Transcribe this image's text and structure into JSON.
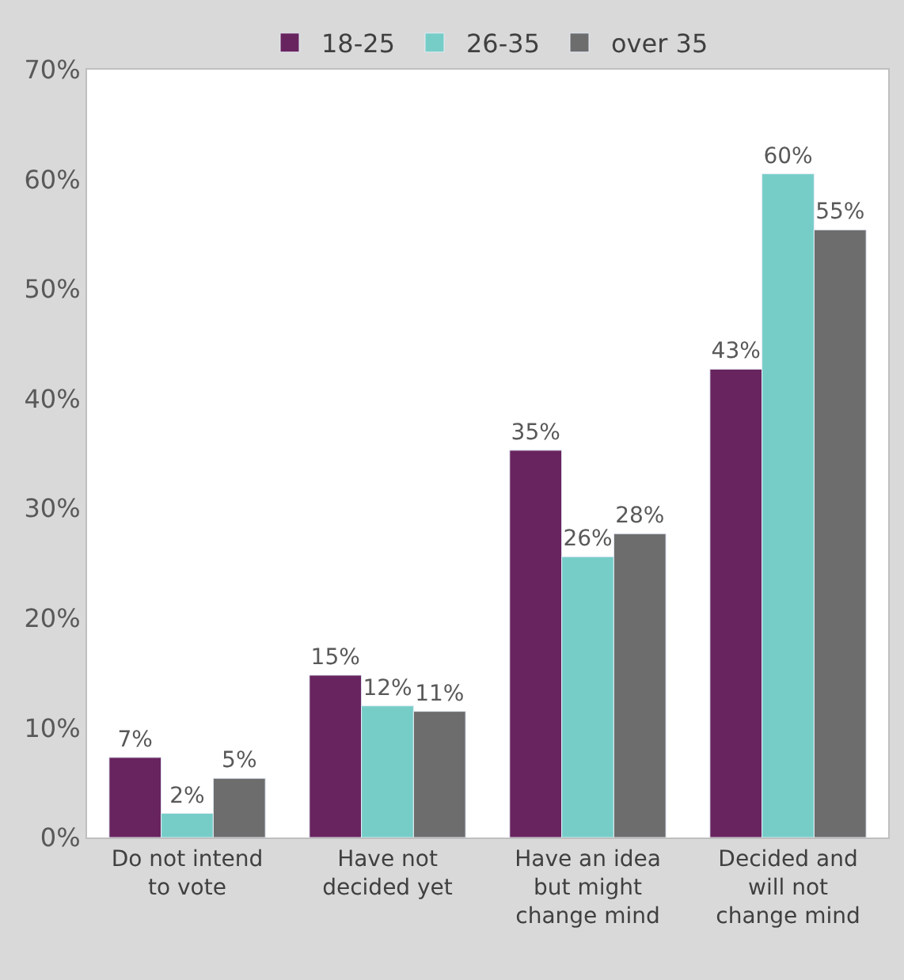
{
  "chart_data": {
    "type": "bar",
    "categories": [
      "Do not intend\nto vote",
      "Have not\ndecided yet",
      "Have an idea\nbut might\nchange mind",
      "Decided and\nwill not\nchange mind"
    ],
    "series": [
      {
        "name": "18-25",
        "color": "#68245e",
        "values": [
          7.3,
          14.8,
          35.3,
          42.7
        ],
        "value_labels": [
          "7%",
          "15%",
          "35%",
          "43%"
        ]
      },
      {
        "name": "26-35",
        "color": "#76cdc7",
        "values": [
          2.2,
          12.0,
          25.6,
          60.5
        ],
        "value_labels": [
          "2%",
          "12%",
          "26%",
          "60%"
        ]
      },
      {
        "name": "over 35",
        "color": "#6d6d6d",
        "values": [
          5.4,
          11.5,
          27.7,
          55.4
        ],
        "value_labels": [
          "5%",
          "11%",
          "28%",
          "55%"
        ]
      }
    ],
    "ylim": [
      0,
      70
    ],
    "yticks": [
      {
        "value": 0,
        "label": "0%"
      },
      {
        "value": 10,
        "label": "10%"
      },
      {
        "value": 20,
        "label": "20%"
      },
      {
        "value": 30,
        "label": "30%"
      },
      {
        "value": 40,
        "label": "40%"
      },
      {
        "value": 50,
        "label": "50%"
      },
      {
        "value": 60,
        "label": "60%"
      },
      {
        "value": 70,
        "label": "70%"
      }
    ],
    "legend": "top"
  }
}
